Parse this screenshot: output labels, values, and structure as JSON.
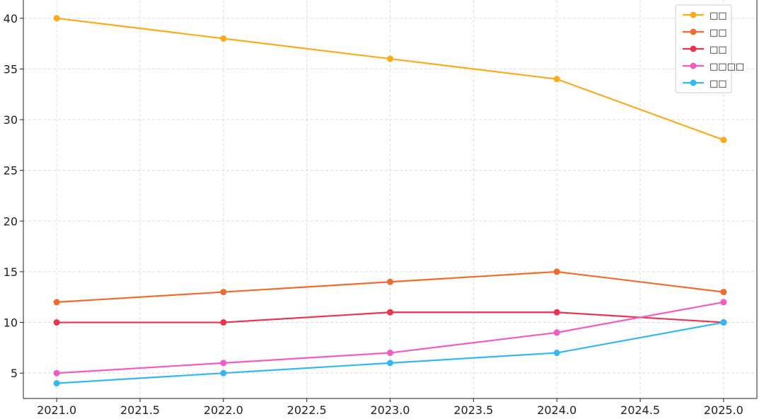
{
  "chart_data": {
    "type": "line",
    "title": "",
    "xlabel": "",
    "ylabel": "",
    "x": [
      2021,
      2022,
      2023,
      2024,
      2025
    ],
    "xlim": [
      2020.8,
      2025.2
    ],
    "ylim": [
      2.5,
      41.8
    ],
    "x_ticks": [
      "2021.0",
      "2021.5",
      "2022.0",
      "2022.5",
      "2023.0",
      "2023.5",
      "2024.0",
      "2024.5",
      "2025.0"
    ],
    "x_tick_values": [
      2021.0,
      2021.5,
      2022.0,
      2022.5,
      2023.0,
      2023.5,
      2024.0,
      2024.5,
      2025.0
    ],
    "y_ticks": [
      "5",
      "10",
      "15",
      "20",
      "25",
      "30",
      "35",
      "40"
    ],
    "y_tick_values": [
      5,
      10,
      15,
      20,
      25,
      30,
      35,
      40
    ],
    "grid": true,
    "legend_position": "top-right",
    "series": [
      {
        "name": "□□",
        "color": "#FBAA19",
        "values": [
          40,
          38,
          36,
          34,
          28
        ]
      },
      {
        "name": "□□",
        "color": "#F26B2E",
        "values": [
          12,
          13,
          14,
          15,
          13
        ]
      },
      {
        "name": "□□",
        "color": "#EC3350",
        "values": [
          10,
          10,
          11,
          11,
          10
        ]
      },
      {
        "name": "□□□□",
        "color": "#F25BC2",
        "values": [
          5,
          6,
          7,
          9,
          12
        ]
      },
      {
        "name": "□□",
        "color": "#35B7F2",
        "values": [
          4,
          5,
          6,
          7,
          10
        ]
      }
    ]
  }
}
